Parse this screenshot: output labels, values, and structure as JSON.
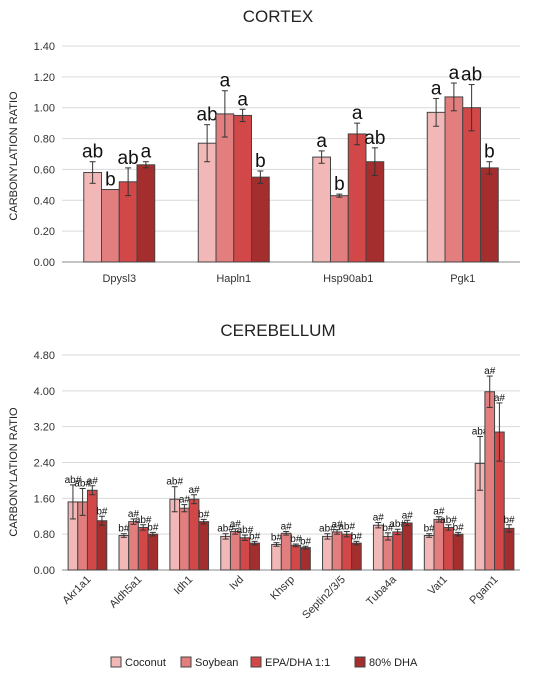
{
  "legend": [
    {
      "name": "Coconut",
      "color": "#F2B8B8"
    },
    {
      "name": "Soybean",
      "color": "#E27E7E"
    },
    {
      "name": "EPA/DHA 1:1",
      "color": "#D24848"
    },
    {
      "name": "80% DHA",
      "color": "#A42E2E"
    }
  ],
  "chart_data": [
    {
      "type": "bar",
      "title": "CORTEX",
      "ylabel": "CARBONYLATION RATIO",
      "ylim": [
        0,
        1.4
      ],
      "yticks": [
        "0.00",
        "0.20",
        "0.40",
        "0.60",
        "0.80",
        "1.00",
        "1.20",
        "1.40"
      ],
      "grid": true,
      "categories": [
        "Dpysl3",
        "Hapln1",
        "Hsp90ab1",
        "Pgk1"
      ],
      "series": [
        {
          "name": "Coconut",
          "values": [
            0.58,
            0.77,
            0.68,
            0.97
          ],
          "errors": [
            0.07,
            0.12,
            0.04,
            0.09
          ],
          "labels": [
            "ab",
            "ab",
            "a",
            "a"
          ]
        },
        {
          "name": "Soybean",
          "values": [
            0.47,
            0.96,
            0.43,
            1.07
          ],
          "errors": [
            0.0,
            0.15,
            0.01,
            0.09
          ],
          "labels": [
            "b",
            "a",
            "b",
            "a"
          ]
        },
        {
          "name": "EPA/DHA 1:1",
          "values": [
            0.52,
            0.95,
            0.83,
            1.0
          ],
          "errors": [
            0.09,
            0.04,
            0.07,
            0.15
          ],
          "labels": [
            "ab",
            "a",
            "a",
            "ab"
          ]
        },
        {
          "name": "80% DHA",
          "values": [
            0.63,
            0.55,
            0.65,
            0.61
          ],
          "errors": [
            0.02,
            0.04,
            0.09,
            0.04
          ],
          "labels": [
            "a",
            "b",
            "ab",
            "b"
          ]
        }
      ]
    },
    {
      "type": "bar",
      "title": "CEREBELLUM",
      "ylabel": "CARBONYLATION RATIO",
      "ylim": [
        0,
        4.8
      ],
      "yticks": [
        "0.00",
        "0.80",
        "1.60",
        "2.40",
        "3.20",
        "4.00",
        "4.80"
      ],
      "grid": true,
      "categories": [
        "Akr1a1",
        "Aldh5a1",
        "Idh1",
        "Ivd",
        "Khsrp",
        "Septin2/3/5",
        "Tuba4a",
        "Vat1",
        "Pgam1"
      ],
      "series": [
        {
          "name": "Coconut",
          "values": [
            1.52,
            0.77,
            1.58,
            0.75,
            0.57,
            0.75,
            1.0,
            0.77,
            2.38
          ],
          "errors": [
            0.38,
            0.04,
            0.28,
            0.06,
            0.04,
            0.06,
            0.06,
            0.04,
            0.6
          ],
          "labels": [
            "ab#",
            "b#",
            "ab#",
            "ab#",
            "b#",
            "ab#",
            "a#",
            "b#",
            "ab#"
          ]
        },
        {
          "name": "Soybean",
          "values": [
            1.52,
            1.08,
            1.38,
            0.86,
            0.82,
            0.85,
            0.75,
            1.13,
            3.98
          ],
          "errors": [
            0.3,
            0.06,
            0.08,
            0.06,
            0.04,
            0.05,
            0.08,
            0.06,
            0.35
          ],
          "labels": [
            "ab#",
            "a#",
            "a#",
            "a#",
            "a#",
            "a#",
            "b#",
            "a#",
            "a#"
          ]
        },
        {
          "name": "EPA/DHA 1:1",
          "values": [
            1.78,
            0.95,
            1.58,
            0.72,
            0.55,
            0.8,
            0.85,
            0.95,
            3.08
          ],
          "errors": [
            0.1,
            0.06,
            0.1,
            0.06,
            0.03,
            0.06,
            0.06,
            0.06,
            0.65
          ],
          "labels": [
            "a#",
            "ab#",
            "a#",
            "ab#",
            "b#",
            "ab#",
            "ab#",
            "ab#",
            "a#"
          ]
        },
        {
          "name": "80% DHA",
          "values": [
            1.1,
            0.8,
            1.08,
            0.6,
            0.5,
            0.6,
            1.05,
            0.8,
            0.93
          ],
          "errors": [
            0.1,
            0.04,
            0.05,
            0.04,
            0.03,
            0.04,
            0.06,
            0.04,
            0.08
          ],
          "labels": [
            "b#",
            "b#",
            "b#",
            "b#",
            "b#",
            "b#",
            "a#",
            "b#",
            "b#"
          ]
        }
      ]
    }
  ]
}
